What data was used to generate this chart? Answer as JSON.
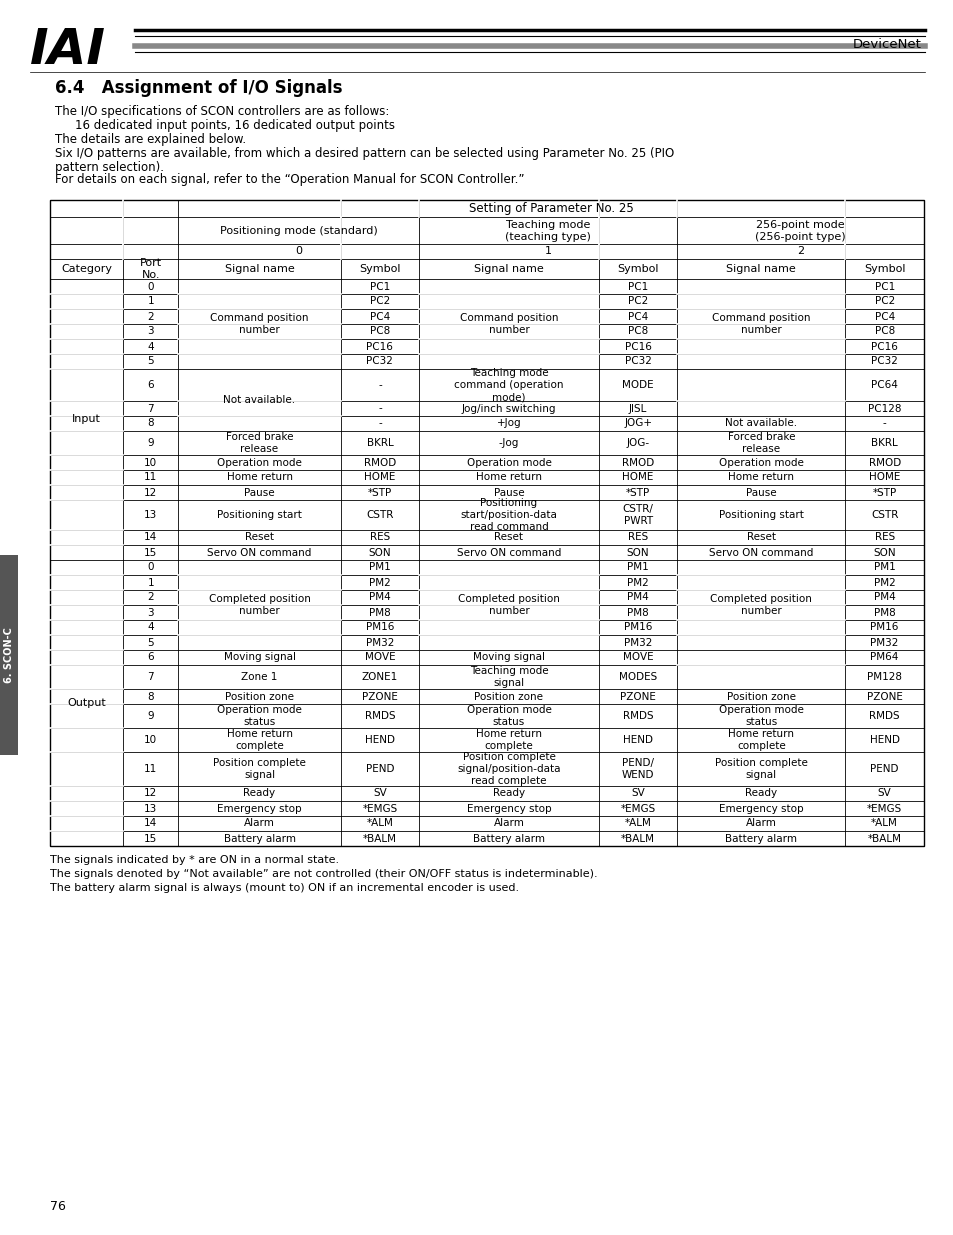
{
  "title": "6.4   Assignment of I/O Signals",
  "intro_lines": [
    "The I/O specifications of SCON controllers are as follows:",
    "    16 dedicated input points, 16 dedicated output points",
    "The details are explained below.",
    "Six I/O patterns are available, from which a desired pattern can be selected using Parameter No. 25 (PIO",
    "pattern selection).",
    "For details on each signal, refer to the “Operation Manual for SCON Controller.”"
  ],
  "footer_lines": [
    "The signals indicated by * are ON in a normal state.",
    "The signals denoted by “Not available” are not controlled (their ON/OFF status is indeterminable).",
    "The battery alarm signal is always (mount to) ON if an incremental encoder is used."
  ],
  "page_number": "76",
  "side_label": "6. SCON-C",
  "header_right": "DeviceNet",
  "bg_color": "#ffffff"
}
